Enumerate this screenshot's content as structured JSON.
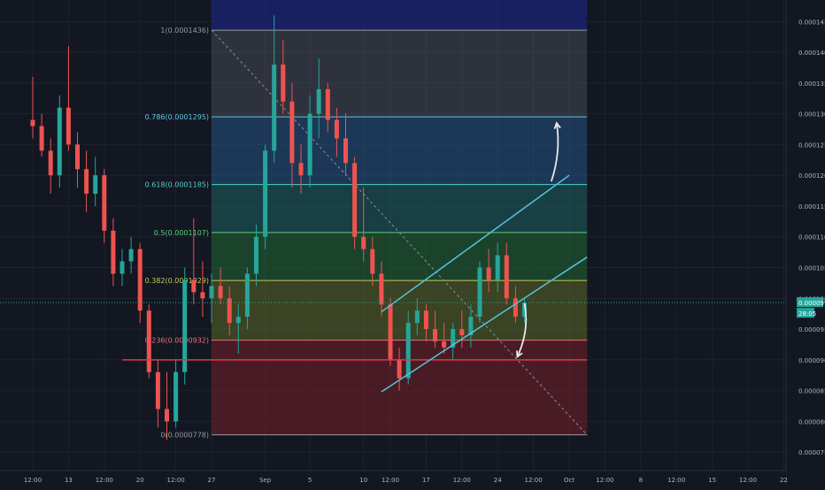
{
  "chart_data": {
    "type": "candlestick",
    "title": "",
    "xlabel": "",
    "ylabel": "",
    "ylim": [
      7.2e-05,
      0.0001485
    ],
    "y_ticks": [
      {
        "value": 7.5e-05,
        "label": "0.0000750"
      },
      {
        "value": 8e-05,
        "label": "0.0000800"
      },
      {
        "value": 8.5e-05,
        "label": "0.0000850"
      },
      {
        "value": 9e-05,
        "label": "0.0000900"
      },
      {
        "value": 9.5e-05,
        "label": "0.0000950"
      },
      {
        "value": 0.0001,
        "label": "0.0001000"
      },
      {
        "value": 0.000105,
        "label": "0.0001050"
      },
      {
        "value": 0.00011,
        "label": "0.0001100"
      },
      {
        "value": 0.000115,
        "label": "0.0001150"
      },
      {
        "value": 0.00012,
        "label": "0.0001200"
      },
      {
        "value": 0.000125,
        "label": "0.0001250"
      },
      {
        "value": 0.00013,
        "label": "0.0001300"
      },
      {
        "value": 0.000135,
        "label": "0.0001350"
      },
      {
        "value": 0.00014,
        "label": "0.0001400"
      },
      {
        "value": 0.000145,
        "label": "0.0001450"
      }
    ],
    "x_ticks": [
      {
        "x": 0,
        "label": "12:00"
      },
      {
        "x": 4,
        "label": "13"
      },
      {
        "x": 8,
        "label": "12:00"
      },
      {
        "x": 12,
        "label": "20"
      },
      {
        "x": 16,
        "label": "12:00"
      },
      {
        "x": 20,
        "label": "27"
      },
      {
        "x": 26,
        "label": "Sep"
      },
      {
        "x": 31,
        "label": "5"
      },
      {
        "x": 37,
        "label": "10"
      },
      {
        "x": 40,
        "label": "12:00"
      },
      {
        "x": 44,
        "label": "17"
      },
      {
        "x": 48,
        "label": "12:00"
      },
      {
        "x": 52,
        "label": "24"
      },
      {
        "x": 56,
        "label": "12:00"
      },
      {
        "x": 60,
        "label": "Oct"
      },
      {
        "x": 64,
        "label": "12:00"
      },
      {
        "x": 68,
        "label": "8"
      },
      {
        "x": 72,
        "label": "12:00"
      },
      {
        "x": 76,
        "label": "15"
      },
      {
        "x": 80,
        "label": "12:00"
      },
      {
        "x": 84,
        "label": "22"
      }
    ],
    "current_price": {
      "value": 9.93e-05,
      "label": "0.0000993",
      "sub_label": "28:05"
    },
    "fib_levels": [
      {
        "ratio": 1,
        "value": 0.0001436,
        "label": "1(0.0001436)",
        "color": "#9598a1",
        "fill": "rgba(120,123,134,0.28)"
      },
      {
        "ratio": 0.786,
        "value": 0.0001295,
        "label": "0.786(0.0001295)",
        "color": "#5fc7e6",
        "fill": "rgba(41,98,150,0.45)"
      },
      {
        "ratio": 0.618,
        "value": 0.0001185,
        "label": "0.618(0.0001185)",
        "color": "#4fd3c9",
        "fill": "rgba(30,112,110,0.45)"
      },
      {
        "ratio": 0.5,
        "value": 0.0001107,
        "label": "0.5(0.0001107)",
        "color": "#5bd37e",
        "fill": "rgba(36,112,54,0.5)"
      },
      {
        "ratio": 0.382,
        "value": 0.0001029,
        "label": "0.382(0.0001029)",
        "color": "#c3c95a",
        "fill": "rgba(98,112,36,0.5)"
      },
      {
        "ratio": 0.236,
        "value": 9.32e-05,
        "label": "0.236(0.0000932)",
        "color": "#e8707a",
        "fill": "rgba(110,32,40,0.6)"
      },
      {
        "ratio": 0,
        "value": 7.78e-05,
        "label": "0(0.0000778)",
        "color": "#9598a1",
        "fill": ""
      }
    ],
    "fib_extra_top": {
      "value": 0.00015,
      "fill": "rgba(30,40,150,0.55)"
    },
    "fib_span": {
      "x_start": 20,
      "x_end": 62
    },
    "fib_diagonal": {
      "x_start": 20,
      "y_start": 0.0001436,
      "x_end": 62,
      "y_end": 7.78e-05
    },
    "support_line": {
      "x_start": 10,
      "x_end": 62,
      "value": 9e-05,
      "color": "#e0394a"
    },
    "channel_lines": [
      {
        "x_start": 39,
        "y_start": 9.78e-05,
        "x_end": 60,
        "y_end": 0.00012,
        "color": "#56c4e0"
      },
      {
        "x_start": 39,
        "y_start": 8.48e-05,
        "x_end": 62,
        "y_end": 0.0001067,
        "color": "#56c4e0"
      }
    ],
    "annotation_arrows": [
      {
        "direction": "up",
        "from_x": 58,
        "from_y": 0.000119,
        "to_x": 58.6,
        "to_y": 0.0001285,
        "color": "#e8e8e8"
      },
      {
        "direction": "down",
        "from_x": 55,
        "from_y": 9.92e-05,
        "to_x": 54.2,
        "to_y": 9.05e-05,
        "color": "#e8e8e8"
      }
    ],
    "colors": {
      "background": "#131722",
      "grid": "#1e222d",
      "axis_text": "#b2b5be",
      "up": "#26a69a",
      "down": "#ef5350",
      "current_price_bg": "#26a69a"
    },
    "candles": [
      {
        "x": 0,
        "o": 0.000129,
        "h": 0.000136,
        "l": 0.000126,
        "c": 0.000128
      },
      {
        "x": 1,
        "o": 0.000128,
        "h": 0.00013,
        "l": 0.000123,
        "c": 0.000124
      },
      {
        "x": 2,
        "o": 0.000124,
        "h": 0.000126,
        "l": 0.000117,
        "c": 0.00012
      },
      {
        "x": 3,
        "o": 0.00012,
        "h": 0.000133,
        "l": 0.000118,
        "c": 0.000131
      },
      {
        "x": 4,
        "o": 0.000131,
        "h": 0.000141,
        "l": 0.000124,
        "c": 0.000125
      },
      {
        "x": 5,
        "o": 0.000125,
        "h": 0.000127,
        "l": 0.000118,
        "c": 0.000121
      },
      {
        "x": 6,
        "o": 0.000121,
        "h": 0.000124,
        "l": 0.000114,
        "c": 0.000117
      },
      {
        "x": 7,
        "o": 0.000117,
        "h": 0.000123,
        "l": 0.000115,
        "c": 0.00012
      },
      {
        "x": 8,
        "o": 0.00012,
        "h": 0.000121,
        "l": 0.000109,
        "c": 0.000111
      },
      {
        "x": 9,
        "o": 0.000111,
        "h": 0.000113,
        "l": 0.000102,
        "c": 0.000104
      },
      {
        "x": 10,
        "o": 0.000104,
        "h": 0.000108,
        "l": 0.000102,
        "c": 0.000106
      },
      {
        "x": 11,
        "o": 0.000106,
        "h": 0.00011,
        "l": 0.000104,
        "c": 0.000108
      },
      {
        "x": 12,
        "o": 0.000108,
        "h": 0.000109,
        "l": 9.6e-05,
        "c": 9.8e-05
      },
      {
        "x": 13,
        "o": 9.8e-05,
        "h": 9.9e-05,
        "l": 8.7e-05,
        "c": 8.8e-05
      },
      {
        "x": 14,
        "o": 8.8e-05,
        "h": 9e-05,
        "l": 7.9e-05,
        "c": 8.2e-05
      },
      {
        "x": 15,
        "o": 8.2e-05,
        "h": 8.8e-05,
        "l": 7.7e-05,
        "c": 8e-05
      },
      {
        "x": 16,
        "o": 8e-05,
        "h": 9e-05,
        "l": 7.9e-05,
        "c": 8.8e-05
      },
      {
        "x": 17,
        "o": 8.8e-05,
        "h": 0.000105,
        "l": 8.6e-05,
        "c": 0.000103
      },
      {
        "x": 18,
        "o": 0.000103,
        "h": 0.000113,
        "l": 9.9e-05,
        "c": 0.000101
      },
      {
        "x": 19,
        "o": 0.000101,
        "h": 0.000106,
        "l": 9.7e-05,
        "c": 0.0001
      },
      {
        "x": 20,
        "o": 0.0001,
        "h": 0.000104,
        "l": 9.6e-05,
        "c": 0.000102
      },
      {
        "x": 21,
        "o": 0.000102,
        "h": 0.000105,
        "l": 9.9e-05,
        "c": 0.0001
      },
      {
        "x": 22,
        "o": 0.0001,
        "h": 0.000102,
        "l": 9.4e-05,
        "c": 9.6e-05
      },
      {
        "x": 23,
        "o": 9.6e-05,
        "h": 9.9e-05,
        "l": 9.1e-05,
        "c": 9.7e-05
      },
      {
        "x": 24,
        "o": 9.7e-05,
        "h": 0.000105,
        "l": 9.5e-05,
        "c": 0.000104
      },
      {
        "x": 25,
        "o": 0.000104,
        "h": 0.000112,
        "l": 0.000102,
        "c": 0.00011
      },
      {
        "x": 26,
        "o": 0.00011,
        "h": 0.000125,
        "l": 0.000108,
        "c": 0.000124
      },
      {
        "x": 27,
        "o": 0.000124,
        "h": 0.000146,
        "l": 0.000122,
        "c": 0.000138
      },
      {
        "x": 28,
        "o": 0.000138,
        "h": 0.000142,
        "l": 0.00013,
        "c": 0.000132
      },
      {
        "x": 29,
        "o": 0.000132,
        "h": 0.000135,
        "l": 0.000118,
        "c": 0.000122
      },
      {
        "x": 30,
        "o": 0.000122,
        "h": 0.000125,
        "l": 0.000117,
        "c": 0.00012
      },
      {
        "x": 31,
        "o": 0.00012,
        "h": 0.000133,
        "l": 0.000118,
        "c": 0.00013
      },
      {
        "x": 32,
        "o": 0.00013,
        "h": 0.000139,
        "l": 0.000126,
        "c": 0.000134
      },
      {
        "x": 33,
        "o": 0.000134,
        "h": 0.000135,
        "l": 0.000127,
        "c": 0.000129
      },
      {
        "x": 34,
        "o": 0.000129,
        "h": 0.000131,
        "l": 0.000123,
        "c": 0.000126
      },
      {
        "x": 35,
        "o": 0.000126,
        "h": 0.00013,
        "l": 0.00012,
        "c": 0.000122
      },
      {
        "x": 36,
        "o": 0.000122,
        "h": 0.000123,
        "l": 0.000108,
        "c": 0.00011
      },
      {
        "x": 37,
        "o": 0.00011,
        "h": 0.000118,
        "l": 0.000106,
        "c": 0.000108
      },
      {
        "x": 38,
        "o": 0.000108,
        "h": 0.00011,
        "l": 0.000102,
        "c": 0.000104
      },
      {
        "x": 39,
        "o": 0.000104,
        "h": 0.000106,
        "l": 9.7e-05,
        "c": 9.9e-05
      },
      {
        "x": 40,
        "o": 9.9e-05,
        "h": 0.0001,
        "l": 8.9e-05,
        "c": 9e-05
      },
      {
        "x": 41,
        "o": 9e-05,
        "h": 9.2e-05,
        "l": 8.5e-05,
        "c": 8.7e-05
      },
      {
        "x": 42,
        "o": 8.7e-05,
        "h": 9.8e-05,
        "l": 8.6e-05,
        "c": 9.6e-05
      },
      {
        "x": 43,
        "o": 9.6e-05,
        "h": 0.0001,
        "l": 9.4e-05,
        "c": 9.8e-05
      },
      {
        "x": 44,
        "o": 9.8e-05,
        "h": 9.9e-05,
        "l": 9.3e-05,
        "c": 9.5e-05
      },
      {
        "x": 45,
        "o": 9.5e-05,
        "h": 9.8e-05,
        "l": 9.2e-05,
        "c": 9.3e-05
      },
      {
        "x": 46,
        "o": 9.3e-05,
        "h": 9.6e-05,
        "l": 9.1e-05,
        "c": 9.2e-05
      },
      {
        "x": 47,
        "o": 9.2e-05,
        "h": 9.6e-05,
        "l": 9e-05,
        "c": 9.5e-05
      },
      {
        "x": 48,
        "o": 9.5e-05,
        "h": 9.8e-05,
        "l": 9.2e-05,
        "c": 9.4e-05
      },
      {
        "x": 49,
        "o": 9.4e-05,
        "h": 9.9e-05,
        "l": 9.2e-05,
        "c": 9.7e-05
      },
      {
        "x": 50,
        "o": 9.7e-05,
        "h": 0.000106,
        "l": 9.6e-05,
        "c": 0.000105
      },
      {
        "x": 51,
        "o": 0.000105,
        "h": 0.000108,
        "l": 0.000101,
        "c": 0.000103
      },
      {
        "x": 52,
        "o": 0.000103,
        "h": 0.000109,
        "l": 0.000101,
        "c": 0.000107
      },
      {
        "x": 53,
        "o": 0.000107,
        "h": 0.000109,
        "l": 9.9e-05,
        "c": 0.0001
      },
      {
        "x": 54,
        "o": 0.0001,
        "h": 0.000102,
        "l": 9.6e-05,
        "c": 9.7e-05
      },
      {
        "x": 55,
        "o": 9.7e-05,
        "h": 0.0001,
        "l": 9.6e-05,
        "c": 9.93e-05
      }
    ]
  }
}
